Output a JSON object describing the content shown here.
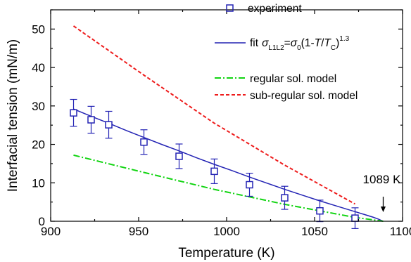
{
  "chart_data": {
    "type": "scatter",
    "xlabel": "Temperature (K)",
    "ylabel": "Interfacial tension (mN/m)",
    "xlim": [
      900,
      1100
    ],
    "ylim": [
      0,
      55
    ],
    "xticks": [
      900,
      950,
      1000,
      1050,
      1100
    ],
    "yticks": [
      0,
      10,
      20,
      30,
      40,
      50
    ],
    "grid": false,
    "legend_position": "top-right",
    "colors": {
      "experiment": "#2323b4",
      "fit": "#2323b4",
      "regular": "#11d411",
      "subregular": "#ee1c1c"
    },
    "series": [
      {
        "name": "experiment",
        "type": "scatter-errorbar",
        "marker": "open-square",
        "x": [
          913,
          923,
          933,
          953,
          973,
          993,
          1013,
          1033,
          1053,
          1073
        ],
        "y": [
          28.2,
          26.4,
          25.1,
          20.6,
          16.9,
          13.0,
          9.5,
          6.1,
          2.7,
          0.8
        ],
        "yerr": [
          3.5,
          3.5,
          3.5,
          3.2,
          3.2,
          3.2,
          3.0,
          3.0,
          2.8,
          2.7
        ]
      },
      {
        "name": "fit",
        "type": "line",
        "style": "solid",
        "x": [
          913,
          923,
          933,
          943,
          953,
          963,
          973,
          983,
          993,
          1003,
          1013,
          1023,
          1033,
          1043,
          1053,
          1063,
          1073,
          1078,
          1083,
          1086,
          1089
        ],
        "y": [
          29.2,
          27.3,
          25.5,
          23.6,
          21.8,
          20.0,
          18.3,
          16.5,
          14.8,
          13.2,
          11.5,
          9.9,
          8.3,
          6.8,
          5.3,
          3.9,
          2.5,
          1.8,
          1.1,
          0.6,
          0.0
        ]
      },
      {
        "name": "regular sol. model",
        "type": "line",
        "style": "dash-dot",
        "x": [
          913,
          953,
          993,
          1033,
          1073,
          1089
        ],
        "y": [
          17.2,
          12.7,
          8.3,
          4.4,
          1.0,
          0.0
        ]
      },
      {
        "name": "sub-regular sol. model",
        "type": "line",
        "style": "dashed",
        "x": [
          913,
          953,
          993,
          1033,
          1073
        ],
        "y": [
          50.8,
          38.0,
          25.5,
          14.6,
          4.5
        ]
      }
    ],
    "annotations": [
      {
        "text": "1089 K",
        "x": 1089,
        "y": 0,
        "arrow": "down"
      }
    ],
    "legend": {
      "experiment": "experiment",
      "fit_prefix": "fit",
      "fit_sigma": "σ",
      "fit_sub": "L1L2",
      "fit_eq": "=",
      "fit_sigma0": "σ",
      "fit_zero": "0",
      "fit_open": "(1-",
      "fit_T": "T",
      "fit_slash": "/",
      "fit_Tc": "T",
      "fit_C": "C",
      "fit_close": ")",
      "fit_exp": "1.3",
      "regular": "regular sol. model",
      "subregular": "sub-regular sol. model"
    }
  }
}
